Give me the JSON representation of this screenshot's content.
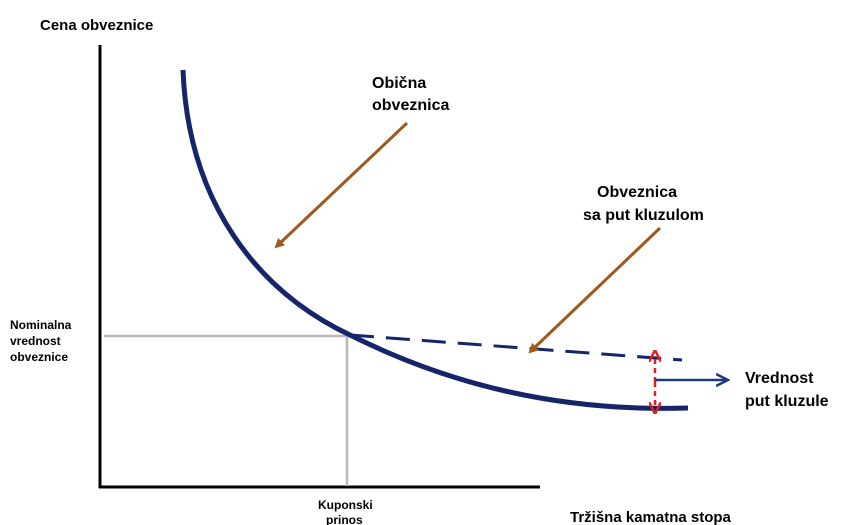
{
  "axes": {
    "y_label": "Cena obveznice",
    "x_label": "Tržišna kamatna stopa"
  },
  "labels": {
    "plain_bond": [
      "Obična",
      "obveznica"
    ],
    "put_bond": [
      "Obveznica",
      "sa put kluzulom"
    ],
    "face_value": [
      "Nominalna",
      "vrednost",
      "obveznice"
    ],
    "put_value": [
      "Vrednost",
      "put kluzule"
    ],
    "coupon_yield": [
      "Kuponski",
      "prinos"
    ]
  }
}
